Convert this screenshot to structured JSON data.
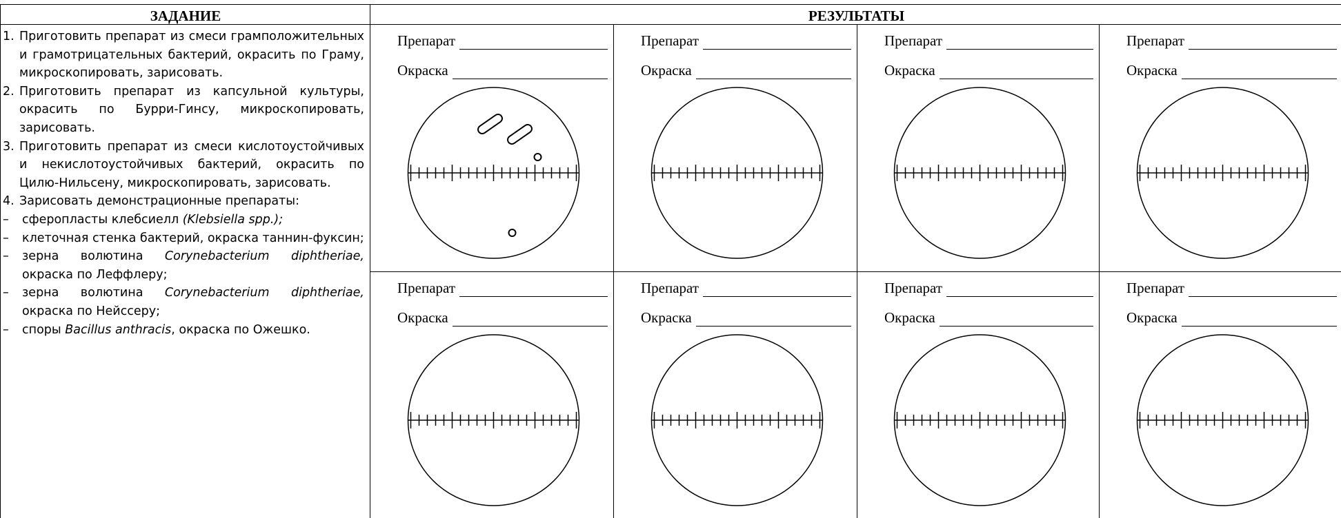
{
  "header": {
    "task": "ЗАДАНИЕ",
    "results": "РЕЗУЛЬТАТЫ"
  },
  "tasks": [
    {
      "number": "1.",
      "text": "Приготовить препарат из смеси грамположительных и грамотрицательных бактерий, окрасить по Граму, микроскопировать, зарисовать."
    },
    {
      "number": "2.",
      "text": "Приготовить препарат из капсульной культуры, окрасить по Бурри-Гинсу, микроскопировать, зарисовать."
    },
    {
      "number": "3.",
      "text": "Приготовить препарат из смеси кислотоустойчивых и некислотоустойчивых бактерий, окрасить по Цилю-Нильсену, микроскопировать, зарисовать."
    },
    {
      "number": "4.",
      "text": "Зарисовать демонстрационные препараты:",
      "bullet": "–",
      "subitems": [
        [
          {
            "text": "сферопласты клебсиелл "
          },
          {
            "text": "(Klebsiella spp.);",
            "italic": true
          }
        ],
        [
          {
            "text": "клеточная стенка бактерий, окраска таннин-фуксин;"
          }
        ],
        [
          {
            "text": "зерна волютина "
          },
          {
            "text": "Corynebacterium diphtheriae,",
            "italic": true
          },
          {
            "text": " окраска по Леффлеру;"
          }
        ],
        [
          {
            "text": "зерна волютина "
          },
          {
            "text": "Corynebacterium diphtheriae,",
            "italic": true
          },
          {
            "text": " окраска по Нейссеру;"
          }
        ],
        [
          {
            "text": "споры "
          },
          {
            "text": "Bacillus anthracis",
            "italic": true
          },
          {
            "text": ", окраска по Ожешко."
          }
        ]
      ]
    }
  ],
  "panels": [
    {
      "preparation": "Препарат",
      "staining": "Окраска"
    },
    {
      "preparation": "Препарат",
      "staining": "Окраска"
    },
    {
      "preparation": "Препарат",
      "staining": "Окраска"
    },
    {
      "preparation": "Препарат",
      "staining": "Окраска"
    },
    {
      "preparation": "Препарат",
      "staining": "Окраска"
    },
    {
      "preparation": "Препарат",
      "staining": "Окраска"
    },
    {
      "preparation": "Препарат",
      "staining": "Окраска"
    },
    {
      "preparation": "Препарат",
      "staining": "Окраска"
    }
  ]
}
